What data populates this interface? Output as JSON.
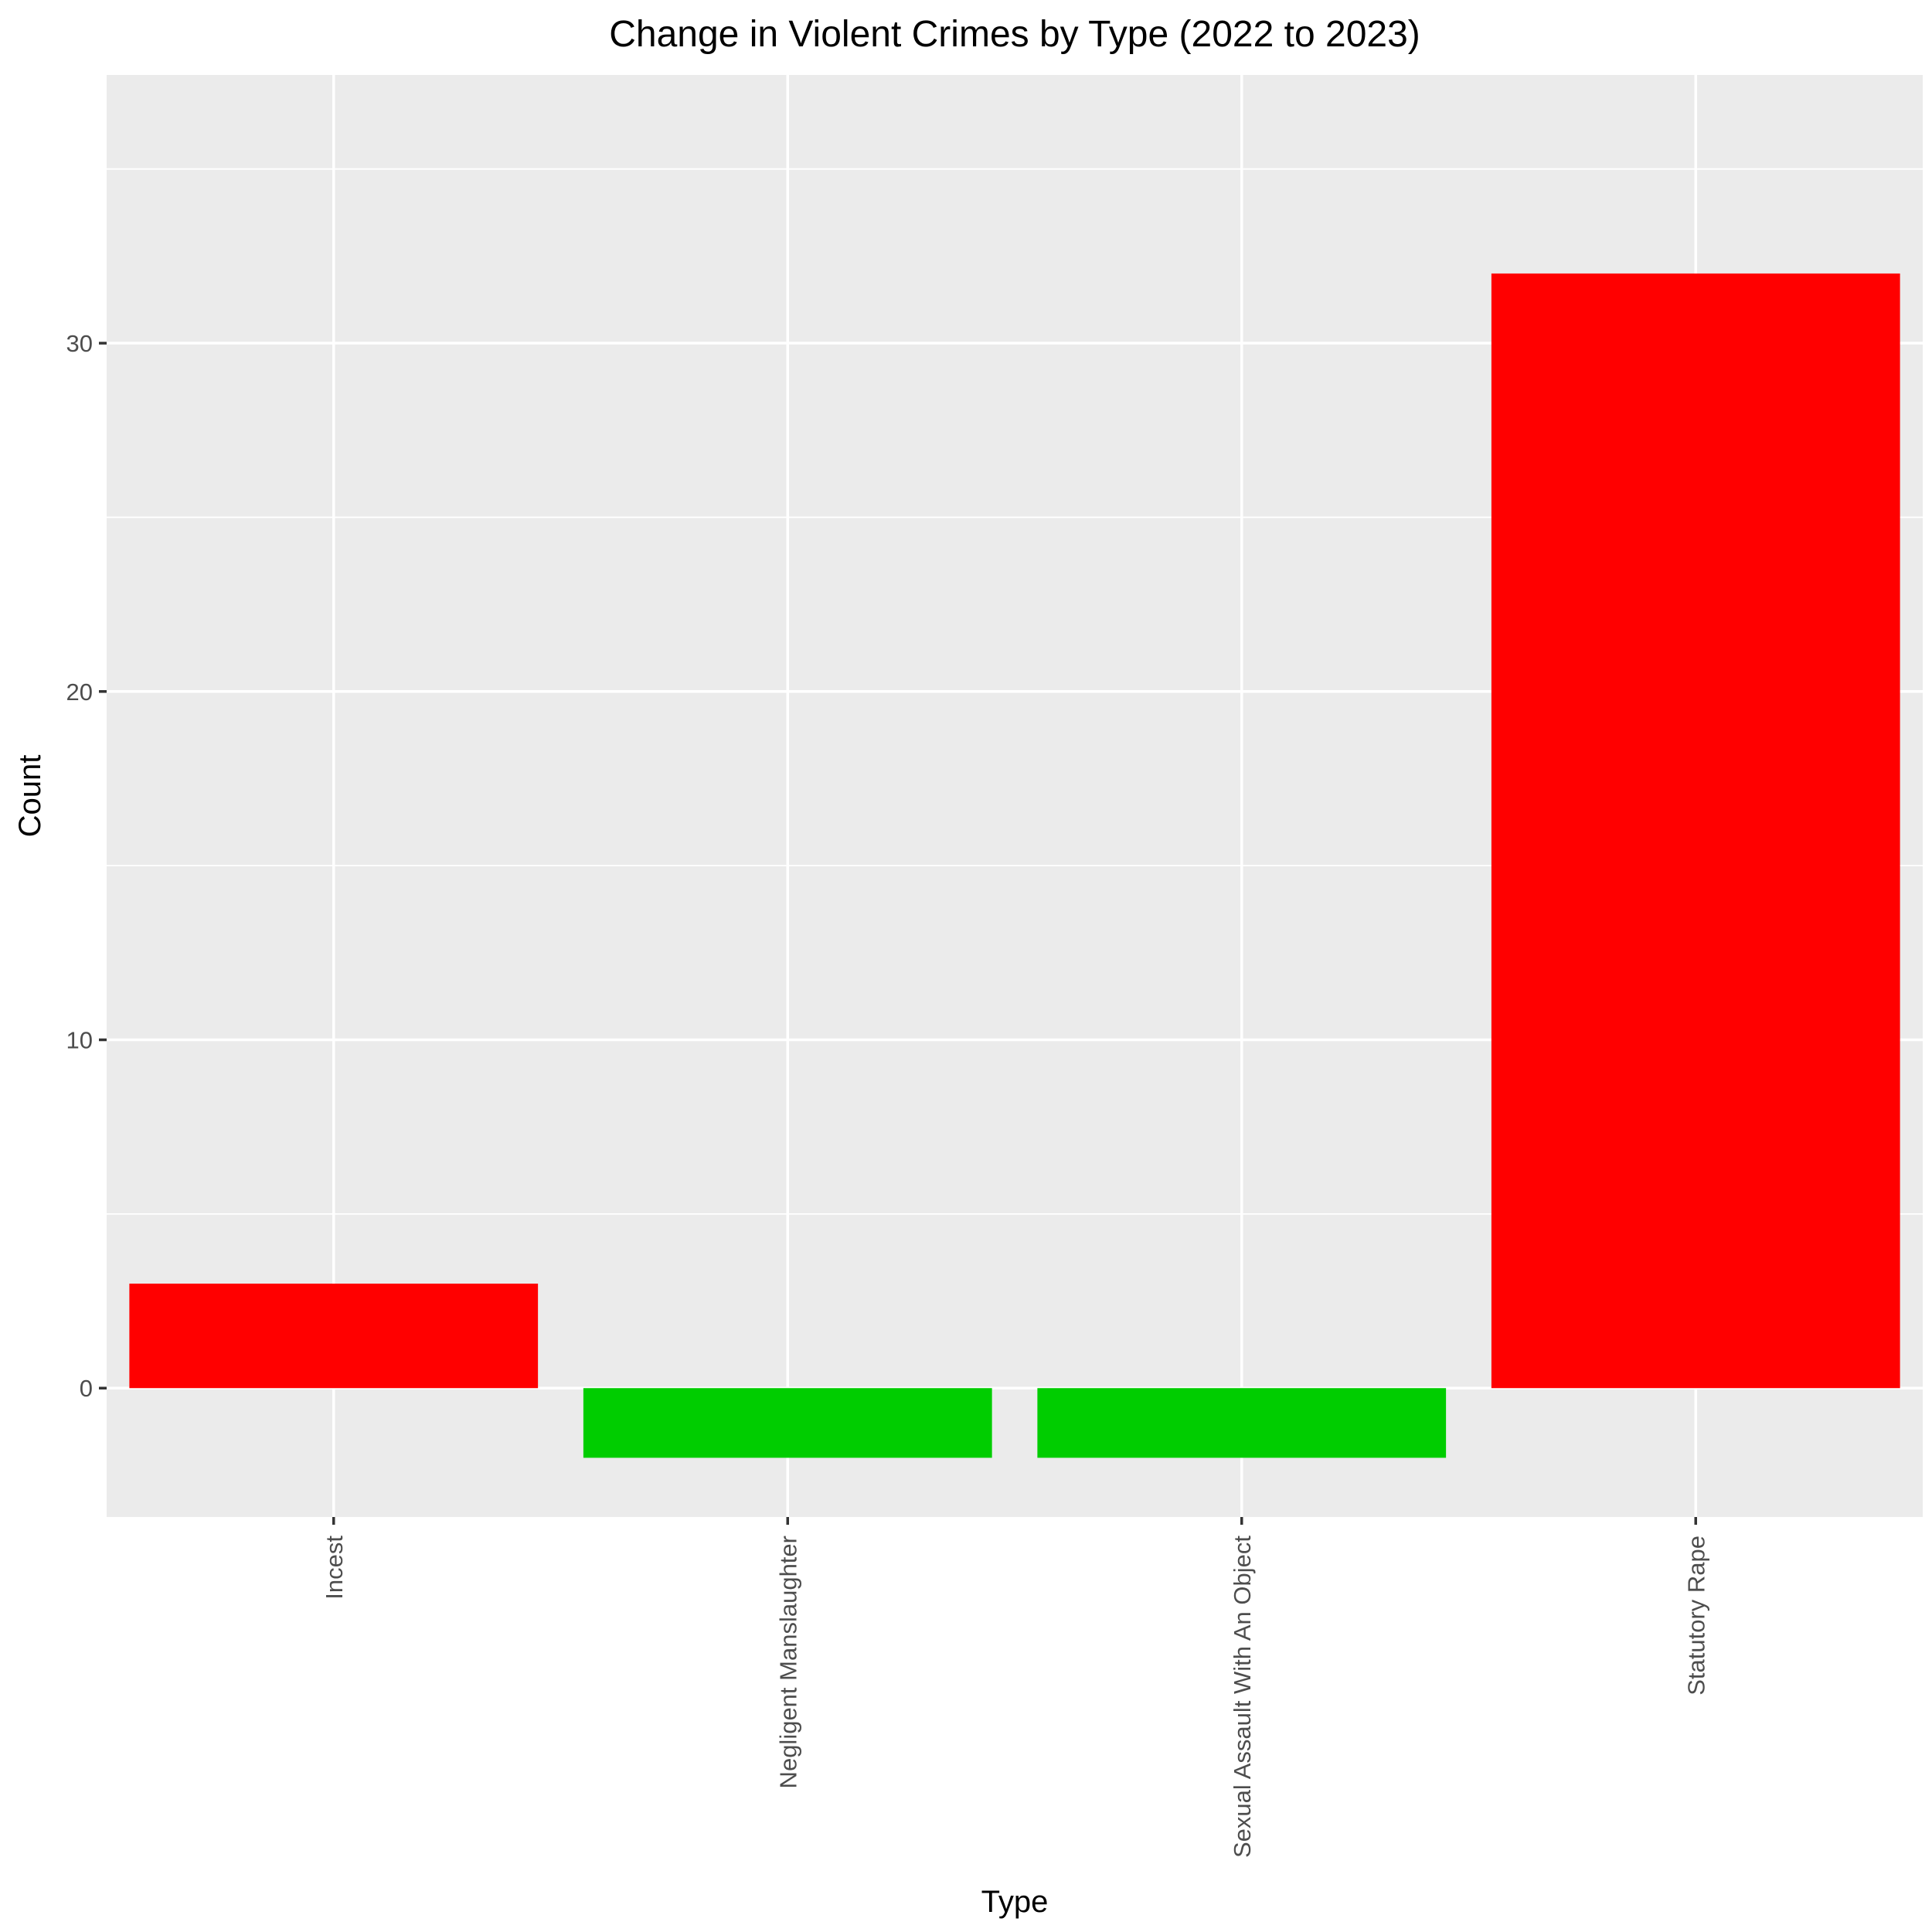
{
  "chart_data": {
    "type": "bar",
    "title": "Change in Violent Crimes by Type (2022 to 2023)",
    "xlabel": "Type",
    "ylabel": "Count",
    "categories": [
      "Incest",
      "Negligent Manslaughter",
      "Sexual Assault With An Object",
      "Statutory Rape"
    ],
    "values": [
      3,
      -2,
      -2,
      32
    ],
    "ylim": [
      -3.7,
      37.7
    ],
    "yticks": [
      0,
      10,
      20,
      30
    ],
    "grid": true,
    "legend": "none",
    "colors": {
      "increase": "#ff0000",
      "decrease": "#00cd00",
      "panel_background": "#ebebeb",
      "grid": "#ffffff",
      "tick_text": "#4d4d4d",
      "text": "#000000"
    }
  }
}
